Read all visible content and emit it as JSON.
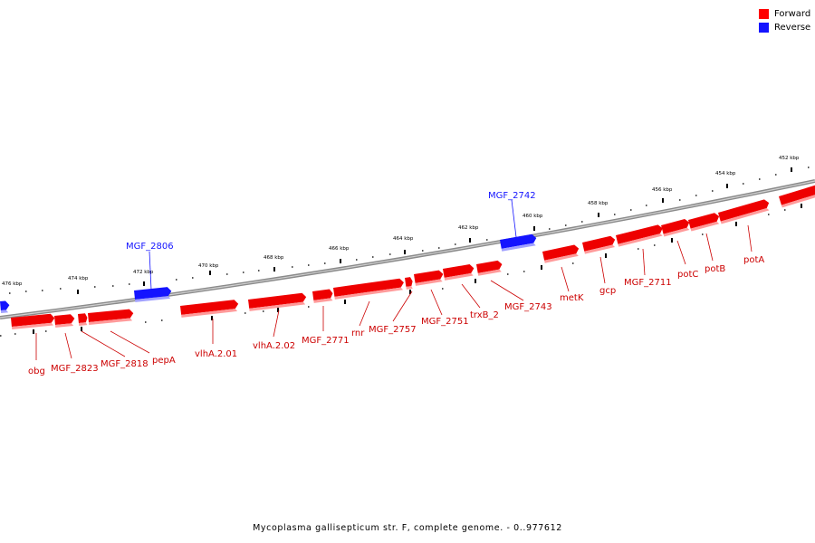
{
  "legend": {
    "forward_label": "Forward",
    "reverse_label": "Reverse",
    "forward_color": "#ff0000",
    "reverse_color": "#1414ff"
  },
  "caption": "Mycoplasma gallisepticum str. F, complete genome. - 0..977612",
  "scale_labels": [
    "476 kbp",
    "474 kbp",
    "472 kbp",
    "470 kbp",
    "468 kbp",
    "466 kbp",
    "464 kbp",
    "462 kbp",
    "460 kbp",
    "458 kbp",
    "456 kbp",
    "454 kbp",
    "452 kbp"
  ],
  "gene_labels": {
    "obg": "obg",
    "mgf_2823": "MGF_2823",
    "mgf_2818": "MGF_2818",
    "pepa": "pepA",
    "vlha_201": "vlhA.2.01",
    "vlha_202": "vlhA.2.02",
    "mgf_2771": "MGF_2771",
    "rnr": "rnr",
    "mgf_2757": "MGF_2757",
    "mgf_2751": "MGF_2751",
    "trxb_2": "trxB_2",
    "mgf_2743": "MGF_2743",
    "metk": "metK",
    "gcp": "gcp",
    "mgf_2711": "MGF_2711",
    "potc": "potC",
    "potb": "potB",
    "pota": "potA",
    "mgf_2806": "MGF_2806",
    "mgf_2742": "MGF_2742"
  }
}
